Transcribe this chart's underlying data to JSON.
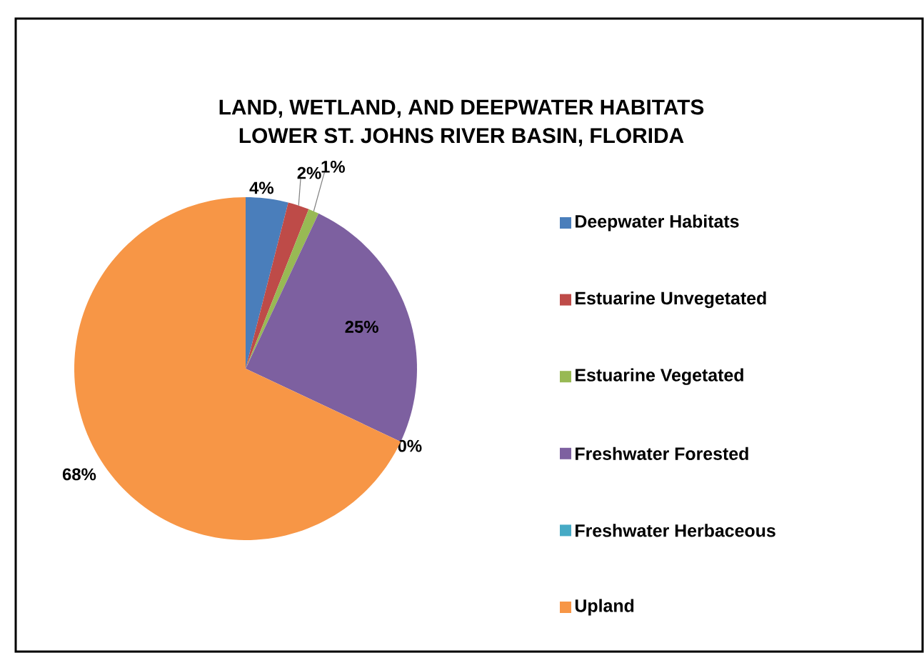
{
  "chart_data": {
    "type": "pie",
    "title": "LAND, WETLAND, AND DEEPWATER HABITATS\nLOWER ST. JOHNS RIVER BASIN, FLORIDA",
    "categories": [
      "Deepwater Habitats",
      "Estuarine Unvegetated",
      "Estuarine Vegetated",
      "Freshwater Forested",
      "Freshwater Herbaceous",
      "Upland"
    ],
    "values": [
      4,
      2,
      1,
      25,
      0,
      68
    ],
    "value_labels": [
      "4%",
      "2%",
      "1%",
      "25%",
      "0%",
      "68%"
    ],
    "colors": [
      "#4a7ebb",
      "#be4b48",
      "#98b954",
      "#7d60a0",
      "#46aac5",
      "#f79646"
    ],
    "legend": "right"
  }
}
